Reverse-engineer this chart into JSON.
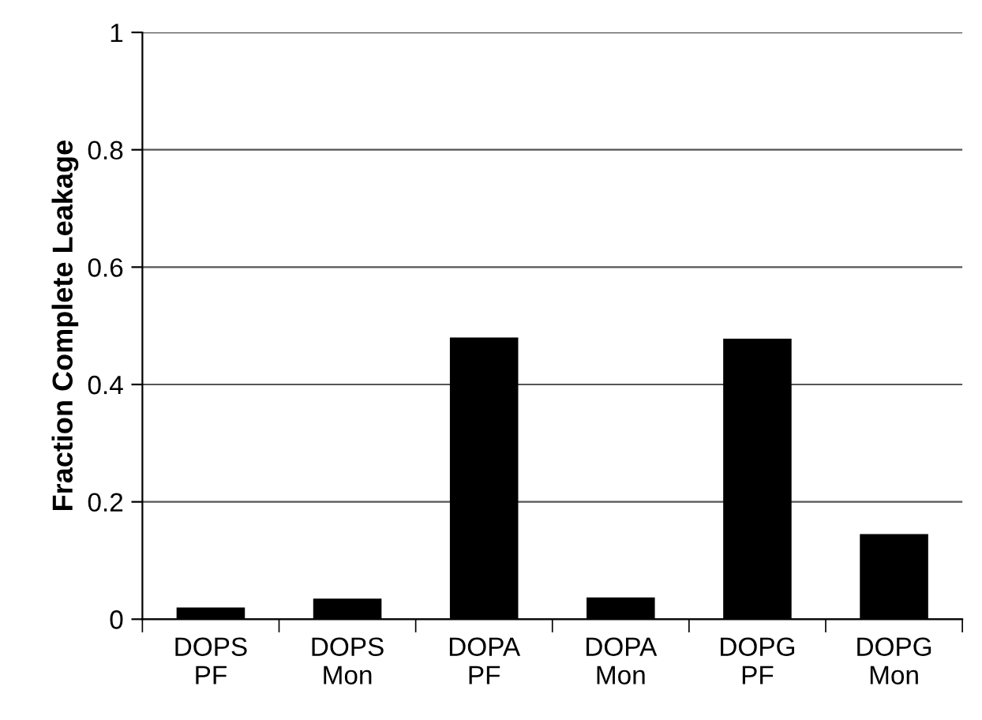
{
  "chart_data": {
    "type": "bar",
    "ylabel": "Fraction Complete Leakage",
    "categories": [
      "DOPS\nPF",
      "DOPS\nMon",
      "DOPA\nPF",
      "DOPA\nMon",
      "DOPG\nPF",
      "DOPG\nMon"
    ],
    "values": [
      0.02,
      0.035,
      0.48,
      0.037,
      0.478,
      0.145
    ],
    "color": "#000000",
    "ylim": [
      0,
      1
    ],
    "yticks": [
      0,
      {
        "value": 0.2,
        "label": "0.2"
      },
      {
        "value": 0.4,
        "label": "0.4"
      },
      {
        "value": 0.6,
        "label": "0.6"
      },
      {
        "value": 0.8,
        "label": "0.8"
      },
      1
    ],
    "grid": "y"
  }
}
